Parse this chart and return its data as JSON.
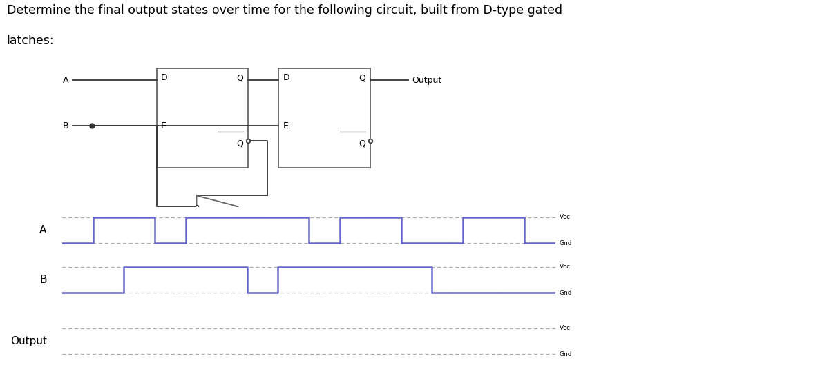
{
  "title_line1": "Determine the final output states over time for the following circuit, built from D-type gated",
  "title_line2": "latches:",
  "title_fontsize": 12.5,
  "signal_color": "#6666cc",
  "dotted_color": "#aaaaaa",
  "background": "#ffffff",
  "signal_A_label": "A",
  "signal_B_label": "B",
  "signal_Output_label": "Output",
  "vcc_label": "Vcc",
  "gnd_label": "Gnd",
  "A_times": [
    0,
    1,
    2,
    3,
    4,
    5,
    6,
    7,
    8,
    9,
    10,
    11,
    12,
    13,
    14,
    15,
    16
  ],
  "A_values": [
    0,
    1,
    1,
    0,
    1,
    1,
    1,
    1,
    0,
    1,
    1,
    0,
    0,
    1,
    1,
    0,
    0
  ],
  "B_times": [
    0,
    1,
    2,
    3,
    4,
    5,
    6,
    7,
    8,
    9,
    10,
    11,
    12,
    13,
    14,
    15,
    16
  ],
  "B_values": [
    0,
    0,
    1,
    1,
    1,
    1,
    0,
    1,
    1,
    1,
    1,
    1,
    0,
    0,
    0,
    0,
    0
  ]
}
